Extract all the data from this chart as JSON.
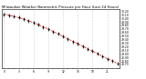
{
  "title": "Milwaukee Weather Barometric Pressure per Hour (Last 24 Hours)",
  "hours": [
    0,
    1,
    2,
    3,
    4,
    5,
    6,
    7,
    8,
    9,
    10,
    11,
    12,
    13,
    14,
    15,
    16,
    17,
    18,
    19,
    20,
    21,
    22,
    23
  ],
  "pressure": [
    30.12,
    30.09,
    30.06,
    30.02,
    29.98,
    29.93,
    29.88,
    29.82,
    29.76,
    29.7,
    29.63,
    29.56,
    29.49,
    29.42,
    29.35,
    29.28,
    29.21,
    29.14,
    29.07,
    29.0,
    28.93,
    28.86,
    28.8,
    28.73
  ],
  "line_color": "#dd0000",
  "marker_color": "#000000",
  "bg_color": "#ffffff",
  "grid_color": "#999999",
  "title_color": "#000000",
  "ymin": 28.6,
  "ymax": 30.25,
  "title_fontsize": 2.8,
  "tick_fontsize": 2.2,
  "ylabel_fontsize": 2.2
}
